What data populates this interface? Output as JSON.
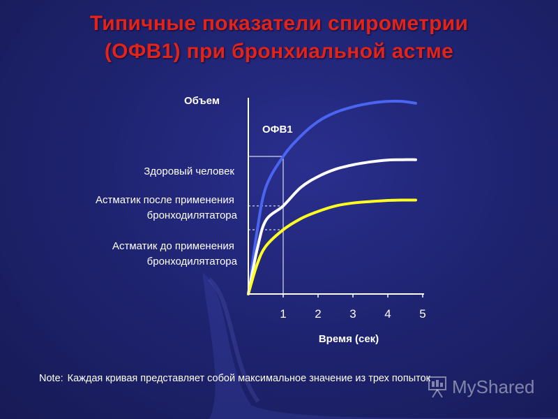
{
  "title_line1": "Типичные показатели спирометрии",
  "title_line2": "(ОФВ1) при бронхиальной астме",
  "note_prefix": "Note:",
  "note_text": "Каждая кривая представляет собой максимальное значение из трех попыток",
  "watermark": "MyShared",
  "colors": {
    "title": "#e2231a",
    "healthy": "#4a66f0",
    "after": "#ffffff",
    "before": "#ffff22"
  },
  "chart_data": {
    "type": "line",
    "title": "",
    "xlabel": "Время (сек)",
    "ylabel": "Объем",
    "x_ticks": [
      "1",
      "2",
      "3",
      "4",
      "5"
    ],
    "xlim": [
      0,
      5
    ],
    "ylim": [
      0,
      5.5
    ],
    "grid": false,
    "marker_label": "ОФВ1",
    "series": [
      {
        "name": "Здоровый человек",
        "color": "#4a66f0",
        "x": [
          0,
          0.25,
          0.5,
          1,
          1.5,
          2,
          2.5,
          3,
          3.5,
          4,
          4.4,
          4.8
        ],
        "y": [
          0,
          1.7,
          2.9,
          3.75,
          4.3,
          4.7,
          4.95,
          5.1,
          5.2,
          5.25,
          5.25,
          5.2
        ]
      },
      {
        "name": "Астматик после применения бронходилятатора",
        "color": "#ffffff",
        "x": [
          0,
          0.25,
          0.5,
          1,
          1.5,
          2,
          2.5,
          3,
          3.5,
          4,
          4.4,
          4.8
        ],
        "y": [
          0,
          1.2,
          2.0,
          2.4,
          2.9,
          3.2,
          3.4,
          3.52,
          3.6,
          3.65,
          3.66,
          3.66
        ]
      },
      {
        "name": "Астматик до применения бронходилятатора",
        "color": "#ffff22",
        "x": [
          0,
          0.25,
          0.5,
          1,
          1.5,
          2,
          2.5,
          3,
          3.5,
          4,
          4.4,
          4.8
        ],
        "y": [
          0,
          0.8,
          1.3,
          1.75,
          2.05,
          2.25,
          2.4,
          2.48,
          2.52,
          2.55,
          2.56,
          2.56
        ]
      }
    ]
  }
}
